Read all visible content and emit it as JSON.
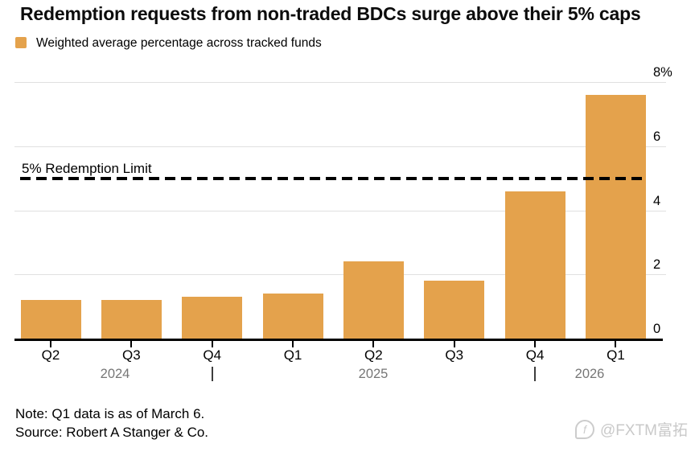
{
  "title": "Redemption requests from non-traded BDCs surge above their 5% caps",
  "legend": {
    "label": "Weighted average percentage across tracked funds"
  },
  "chart_data": {
    "type": "bar",
    "title": "Redemption requests from non-traded BDCs surge above their 5% caps",
    "series_name": "Weighted average percentage across tracked funds",
    "categories": [
      "Q2",
      "Q3",
      "Q4",
      "Q1",
      "Q2",
      "Q3",
      "Q4",
      "Q1"
    ],
    "values": [
      1.2,
      1.2,
      1.3,
      1.4,
      2.4,
      1.8,
      4.6,
      7.6
    ],
    "unit": "%",
    "ylim": [
      0,
      8
    ],
    "ytick_values": [
      8,
      6,
      4,
      2,
      0
    ],
    "ytick_labels": [
      "8%",
      "6",
      "4",
      "2",
      "0"
    ],
    "y_axis_side": "right",
    "grid": "horizontal",
    "reference_line": {
      "value": 5,
      "label": "5% Redemption Limit",
      "style": "dashed"
    },
    "year_labels": [
      "2024",
      "2025",
      "2026"
    ],
    "year_separators_after_category_index": [
      2,
      6
    ]
  },
  "footer": {
    "note": "Note: Q1 data is as of March 6.",
    "source": "Source: Robert A Stanger & Co."
  },
  "watermark": {
    "icon_letter": "f",
    "text": "@FXTM富拓"
  },
  "colors": {
    "bar": "#e4a24c",
    "grid": "#e0e0e0",
    "axis": "#000000",
    "tick": "#000000",
    "year_label": "#767676",
    "year_separator": "#3d3d3d",
    "reference_line": "#000000",
    "watermark": "#c9c9c9",
    "text": "#0c0c0c"
  }
}
